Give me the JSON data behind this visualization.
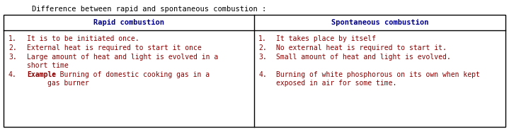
{
  "title": "Difference between rapid and spontaneous combustion :",
  "title_color": "#000000",
  "title_fontsize": 7.5,
  "header_left": "Rapid combustion",
  "header_right": "Spontaneous combustion",
  "header_fontsize": 7.5,
  "header_color": "#00008B",
  "body_fontsize": 7.0,
  "body_color": "#8B0000",
  "bg_color": "#ffffff",
  "table_border_color": "#000000",
  "left_nums": [
    "1.",
    "2.",
    "3.",
    "4."
  ],
  "left_texts": [
    "It is to be initiated once.",
    "External heat is required to start it once",
    "Large amount of heat and light is evolved in a\nshort time",
    " : Burning of domestic cooking gas in a\ngas burner"
  ],
  "left_bold_prefix": [
    "",
    "",
    "",
    "Example"
  ],
  "right_nums": [
    "1.",
    "2.",
    "3.",
    "4."
  ],
  "right_texts": [
    "It takes place by itself",
    "No external heat is required to start it.",
    "Small amount of heat and light is evolved.",
    "Burning of white phosphorous on its own when kept\nexposed in air for some time."
  ]
}
